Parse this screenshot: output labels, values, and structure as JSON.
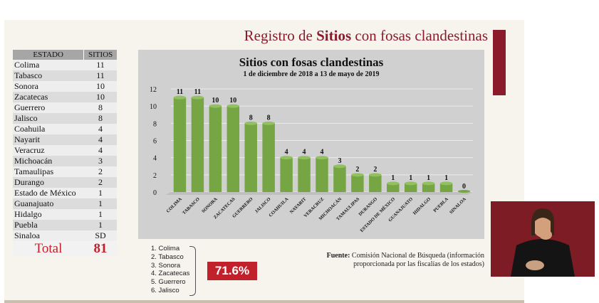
{
  "slide_title": {
    "prefix": "Registro de ",
    "bold": "Sitios",
    "suffix": " con fosas clandestinas"
  },
  "table": {
    "headers": [
      "ESTADO",
      "SITIOS"
    ],
    "rows": [
      [
        "Colima",
        "11"
      ],
      [
        "Tabasco",
        "11"
      ],
      [
        "Sonora",
        "10"
      ],
      [
        "Zacatecas",
        "10"
      ],
      [
        "Guerrero",
        "8"
      ],
      [
        "Jalisco",
        "8"
      ],
      [
        "Coahuila",
        "4"
      ],
      [
        "Nayarit",
        "4"
      ],
      [
        "Veracruz",
        "4"
      ],
      [
        "Michoacán",
        "3"
      ],
      [
        "Tamaulipas",
        "2"
      ],
      [
        "Durango",
        "2"
      ],
      [
        "Estado de México",
        "1"
      ],
      [
        "Guanajuato",
        "1"
      ],
      [
        "Hidalgo",
        "1"
      ],
      [
        "Puebla",
        "1"
      ],
      [
        "Sinaloa",
        "SD"
      ]
    ],
    "total_label": "Total",
    "total_value": "81"
  },
  "chart_data": {
    "type": "bar",
    "title": "Sitios con fosas clandestinas",
    "subtitle": "1 de diciembre de 2018 a 13 de mayo de 2019",
    "categories": [
      "COLIMA",
      "TABASCO",
      "SONORA",
      "ZACATECAS",
      "GUERRERO",
      "JALISCO",
      "COAHUILA",
      "NAYARIT",
      "VERACRUZ",
      "MICHOACÁN",
      "TAMAULIPAS",
      "DURANGO",
      "ESTADO DE MÉXICO",
      "GUANAJUATO",
      "HIDALGO",
      "PUEBLA",
      "SINALOA"
    ],
    "values": [
      11,
      11,
      10,
      10,
      8,
      8,
      4,
      4,
      4,
      3,
      2,
      2,
      1,
      1,
      1,
      1,
      0
    ],
    "ylim": [
      0,
      12
    ],
    "yticks": [
      0,
      2,
      4,
      6,
      8,
      10,
      12
    ],
    "grid": true,
    "bar_color": "#76a544"
  },
  "top_states": [
    "1. Colima",
    "2. Tabasco",
    "3. Sonora",
    "4. Zacatecas",
    "5. Guerrero",
    "6. Jalisco"
  ],
  "top_percentage": "71.6%",
  "source": {
    "label": "Fuente:",
    "line1": "Comisión Nacional de Búsqueda (información",
    "line2": "proporcionada por las fiscalías de los estados)"
  },
  "colors": {
    "accent": "#8b1a2b",
    "total_red": "#c0212b",
    "bar_green": "#76a544"
  }
}
